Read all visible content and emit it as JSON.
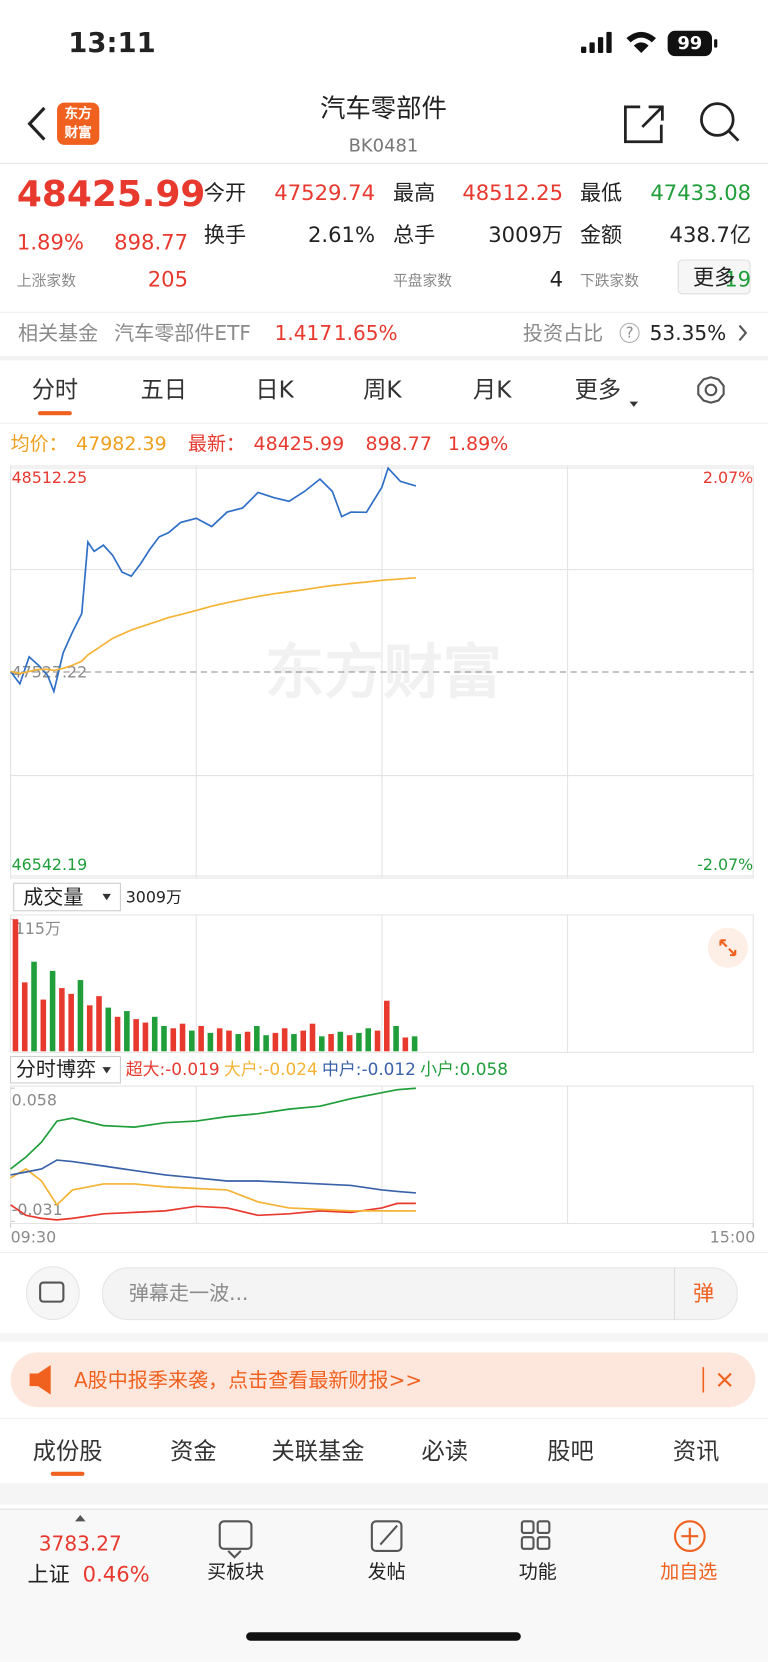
{
  "status": {
    "time": "13:11",
    "battery": "99"
  },
  "header": {
    "title": "汽车零部件",
    "code": "BK0481",
    "logo": [
      "东方",
      "财富"
    ]
  },
  "quote": {
    "price": "48425.99",
    "change_pct": "1.89%",
    "change": "898.77",
    "stats": [
      {
        "label": "今开",
        "value": "47529.74"
      },
      {
        "label": "最高",
        "value": "48512.25"
      },
      {
        "label": "最低",
        "value": "47433.08"
      },
      {
        "label": "换手",
        "value": "2.61%"
      },
      {
        "label": "总手",
        "value": "3009万"
      },
      {
        "label": "金额",
        "value": "438.7亿"
      }
    ],
    "breadth": [
      {
        "label": "上涨家数",
        "value": "205"
      },
      {
        "label": "平盘家数",
        "value": "4"
      },
      {
        "label": "下跌家数",
        "value": "19"
      }
    ],
    "more": "更多"
  },
  "fund": {
    "label": "相关基金",
    "name": "汽车零部件ETF",
    "price": "1.417",
    "pct": "1.65%",
    "ratio_label": "投资占比",
    "ratio_help": "?",
    "ratio": "53.35%"
  },
  "tabs": [
    "分时",
    "五日",
    "日K",
    "周K",
    "月K",
    "更多"
  ],
  "summary": {
    "avg_label": "均价：",
    "avg": "47982.39",
    "last_label": "最新：",
    "last": "48425.99",
    "change": "898.77",
    "pct": "1.89%"
  },
  "watermark": "东方财富",
  "chart_data": [
    {
      "type": "line",
      "xlim": [
        0,
        240
      ],
      "ylim": [
        46542.19,
        48512.25
      ],
      "yticks": [
        48512.25,
        47527.22,
        46542.19
      ],
      "y2lim": [
        -2.07,
        2.07
      ],
      "y2ticks": [
        {
          "value": 2.07,
          "label": "2.07%"
        },
        {
          "value": -2.07,
          "label": "-2.07%"
        }
      ],
      "grid": true,
      "x": [
        0,
        3,
        6,
        9,
        12,
        14,
        17,
        20,
        23,
        25,
        27,
        30,
        33,
        36,
        39,
        42,
        45,
        48,
        51,
        55,
        60,
        65,
        70,
        75,
        80,
        85,
        90,
        95,
        100,
        104,
        107,
        110,
        115,
        120,
        122,
        126,
        131
      ],
      "series": [
        {
          "color": "#2f6fc6",
          "values": [
            47529.74,
            47470,
            47600,
            47560,
            47510,
            47433.08,
            47620,
            47720,
            47810,
            48155,
            48110,
            48140,
            48090,
            48010,
            47990,
            48050,
            48120,
            48180,
            48200,
            48250,
            48270,
            48230,
            48300,
            48320,
            48395,
            48370,
            48352,
            48400,
            48459,
            48400,
            48278,
            48300,
            48299,
            48420,
            48512.25,
            48448,
            48425.99
          ]
        },
        {
          "color": "#f5b335",
          "values": [
            47529.74,
            47520,
            47530,
            47540,
            47540,
            47535,
            47545,
            47560,
            47580,
            47610,
            47630,
            47660,
            47690,
            47710,
            47730,
            47745,
            47760,
            47775,
            47790,
            47805,
            47825,
            47845,
            47862,
            47878,
            47892,
            47905,
            47915,
            47925,
            47937,
            47945,
            47950,
            47955,
            47962,
            47970,
            47973,
            47977,
            47982.39
          ]
        }
      ]
    },
    {
      "type": "bar",
      "title": "成交量",
      "total": "3009万",
      "xlim": [
        0,
        240
      ],
      "ylim": [
        0,
        115
      ],
      "yticks": [
        {
          "value": 115,
          "label": "115万"
        }
      ],
      "x": [
        0,
        3,
        6,
        9,
        12,
        15,
        18,
        21,
        24,
        27,
        30,
        33,
        36,
        39,
        42,
        45,
        48,
        51,
        54,
        57,
        60,
        63,
        66,
        69,
        72,
        75,
        78,
        81,
        84,
        87,
        90,
        93,
        96,
        99,
        102,
        105,
        108,
        111,
        114,
        117,
        120,
        123,
        126,
        129
      ],
      "values": [
        115,
        60,
        78,
        45,
        70,
        55,
        50,
        62,
        40,
        48,
        38,
        30,
        35,
        28,
        25,
        30,
        22,
        20,
        24,
        18,
        22,
        16,
        20,
        18,
        15,
        17,
        22,
        14,
        16,
        20,
        15,
        18,
        24,
        13,
        15,
        17,
        14,
        16,
        20,
        18,
        44,
        22,
        12,
        13
      ],
      "colors": [
        "#e8392f",
        "#e8392f",
        "#1f9e3a",
        "#e8392f",
        "#1f9e3a",
        "#e8392f",
        "#e8392f",
        "#1f9e3a",
        "#e8392f",
        "#e8392f",
        "#1f9e3a",
        "#e8392f",
        "#1f9e3a",
        "#e8392f",
        "#e8392f",
        "#1f9e3a",
        "#1f9e3a",
        "#e8392f",
        "#e8392f",
        "#1f9e3a",
        "#e8392f",
        "#1f9e3a",
        "#e8392f",
        "#e8392f",
        "#1f9e3a",
        "#e8392f",
        "#1f9e3a",
        "#1f9e3a",
        "#e8392f",
        "#e8392f",
        "#1f9e3a",
        "#e8392f",
        "#e8392f",
        "#1f9e3a",
        "#e8392f",
        "#1f9e3a",
        "#e8392f",
        "#1f9e3a",
        "#1f9e3a",
        "#e8392f",
        "#e8392f",
        "#1f9e3a",
        "#e8392f",
        "#1f9e3a"
      ]
    },
    {
      "type": "line",
      "title": "分时博弈",
      "xlim": [
        0,
        240
      ],
      "ylim": [
        -0.031,
        0.058
      ],
      "yticks": [
        0.058,
        -0.031
      ],
      "xticks": [
        {
          "value": 0,
          "label": "09:30"
        },
        {
          "value": 240,
          "label": "15:00"
        }
      ],
      "x": [
        0,
        5,
        10,
        15,
        20,
        30,
        40,
        50,
        60,
        70,
        80,
        90,
        100,
        110,
        120,
        125,
        131
      ],
      "series": [
        {
          "name": "超大:-0.019",
          "color": "#e8392f",
          "values": [
            -0.02,
            -0.027,
            -0.029,
            -0.03,
            -0.029,
            -0.026,
            -0.025,
            -0.024,
            -0.021,
            -0.022,
            -0.027,
            -0.026,
            -0.024,
            -0.025,
            -0.022,
            -0.019,
            -0.019
          ]
        },
        {
          "name": "大户:-0.024",
          "color": "#f5b335",
          "values": [
            -0.002,
            0.004,
            -0.004,
            -0.02,
            -0.01,
            -0.006,
            -0.006,
            -0.008,
            -0.009,
            -0.01,
            -0.018,
            -0.022,
            -0.023,
            -0.024,
            -0.024,
            -0.024,
            -0.024
          ]
        },
        {
          "name": "中户:-0.012",
          "color": "#3a62a8",
          "values": [
            0.0,
            0.002,
            0.004,
            0.01,
            0.009,
            0.006,
            0.003,
            0.0,
            -0.002,
            -0.004,
            -0.004,
            -0.005,
            -0.006,
            -0.007,
            -0.01,
            -0.011,
            -0.012
          ]
        },
        {
          "name": "小户:0.058",
          "color": "#1f9e3a",
          "values": [
            0.004,
            0.012,
            0.022,
            0.036,
            0.038,
            0.033,
            0.032,
            0.035,
            0.036,
            0.039,
            0.041,
            0.044,
            0.046,
            0.051,
            0.055,
            0.057,
            0.058
          ]
        }
      ]
    }
  ],
  "danmu": {
    "placeholder": "弹幕走一波...",
    "button": "弹"
  },
  "banner": "A股中报季来袭，点击查看最新财报>>",
  "bottom_tabs": [
    "成份股",
    "资金",
    "关联基金",
    "必读",
    "股吧",
    "资讯"
  ],
  "nav": {
    "index_value": "3783.27",
    "index_name": "上证",
    "index_pct": "0.46%",
    "items": [
      "买板块",
      "发帖",
      "功能",
      "加自选"
    ]
  }
}
